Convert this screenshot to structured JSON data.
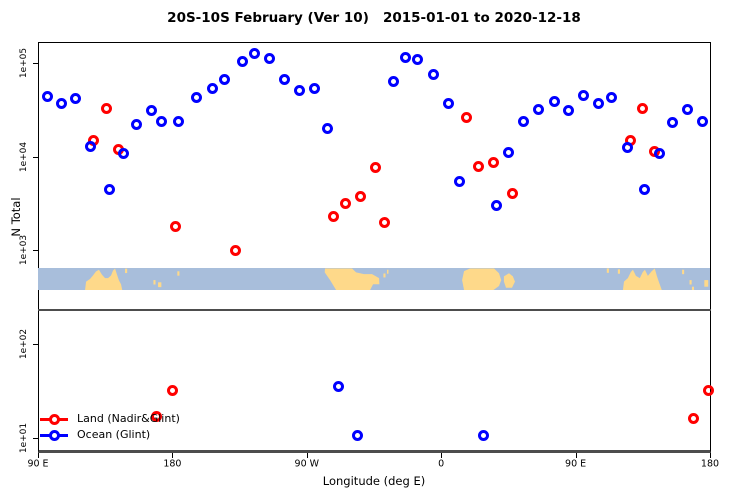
{
  "title": "20S-10S February (Ver 10)   2015-01-01 to 2020-12-18",
  "axes": {
    "x_label": "Longitude (deg E)",
    "y_label": "N Total"
  },
  "legend": [
    {
      "label": "Land (Nadir&Glint)",
      "color": "#ff0000"
    },
    {
      "label": "Ocean (Glint)",
      "color": "#0000ff"
    }
  ],
  "chart_data": {
    "type": "scatter",
    "title": "20S-10S February (Ver 10)   2015-01-01 to 2020-12-18",
    "xlabel": "Longitude (deg E)",
    "ylabel": "N Total",
    "x_axis": {
      "domain": [
        90,
        540
      ],
      "note": "longitude unrolled eastward: 90E..180..90W..0..90E..180",
      "ticks": [
        {
          "lon": 90,
          "label": "90 E"
        },
        {
          "lon": 180,
          "label": "180"
        },
        {
          "lon": 270,
          "label": "90 W"
        },
        {
          "lon": 360,
          "label": "0"
        },
        {
          "lon": 450,
          "label": "90 E"
        },
        {
          "lon": 540,
          "label": "180"
        }
      ]
    },
    "y_axis": {
      "scale": "log10",
      "top_log10": 5.224,
      "bottom_log10": 0.87,
      "ticks": [
        {
          "log10": 1,
          "label": "1e+01"
        },
        {
          "log10": 2,
          "label": "1e+02"
        },
        {
          "log10": 3,
          "label": "1e+03"
        },
        {
          "log10": 4,
          "label": "1e+04"
        },
        {
          "log10": 5,
          "label": "1e+05"
        }
      ]
    },
    "series": [
      {
        "name": "Land (Nadir&Glint)",
        "color": "#ff0000",
        "marker": "open-circle",
        "points": [
          [
            127,
            15000
          ],
          [
            136,
            33000
          ],
          [
            144,
            12000
          ],
          [
            169,
            17
          ],
          [
            180,
            32
          ],
          [
            182,
            1800
          ],
          [
            222,
            1000
          ],
          [
            288,
            2300
          ],
          [
            296,
            3200
          ],
          [
            306,
            3800
          ],
          [
            316,
            7600
          ],
          [
            322,
            2000
          ],
          [
            377,
            26000
          ],
          [
            385,
            7800
          ],
          [
            395,
            8600
          ],
          [
            408,
            4100
          ],
          [
            487,
            15000
          ],
          [
            495,
            33000
          ],
          [
            503,
            11500
          ],
          [
            529,
            16
          ],
          [
            539,
            32
          ]
        ]
      },
      {
        "name": "Ocean (Glint)",
        "color": "#0000ff",
        "marker": "open-circle",
        "points": [
          [
            96,
            44000
          ],
          [
            106,
            37000
          ],
          [
            115,
            42000
          ],
          [
            125,
            13000
          ],
          [
            138,
            4500
          ],
          [
            147,
            10700
          ],
          [
            156,
            22000
          ],
          [
            166,
            31000
          ],
          [
            173,
            24000
          ],
          [
            184,
            24000
          ],
          [
            196,
            43000
          ],
          [
            207,
            54000
          ],
          [
            215,
            66000
          ],
          [
            227,
            105000
          ],
          [
            235,
            125000
          ],
          [
            245,
            113000
          ],
          [
            255,
            66000
          ],
          [
            265,
            51000
          ],
          [
            275,
            54000
          ],
          [
            284,
            20000
          ],
          [
            291,
            35
          ],
          [
            304,
            10.5
          ],
          [
            328,
            63000
          ],
          [
            336,
            116000
          ],
          [
            344,
            110000
          ],
          [
            355,
            76000
          ],
          [
            365,
            37000
          ],
          [
            372,
            5400
          ],
          [
            388,
            10.5
          ],
          [
            397,
            3000
          ],
          [
            405,
            11000
          ],
          [
            415,
            24000
          ],
          [
            425,
            32000
          ],
          [
            436,
            39000
          ],
          [
            445,
            31000
          ],
          [
            455,
            45000
          ],
          [
            465,
            37000
          ],
          [
            474,
            43000
          ],
          [
            485,
            12700
          ],
          [
            496,
            4500
          ],
          [
            506,
            10700
          ],
          [
            515,
            23000
          ],
          [
            525,
            32000
          ],
          [
            535,
            24000
          ]
        ]
      }
    ],
    "map_strip": {
      "description": "20S-10S latitude band world map, longitudes 90E eastward to 180 (450 deg span)",
      "ocean_color": "#a8bedb",
      "land_color": "#fed98a",
      "top_log10": 2.813,
      "bottom_log10": 2.578,
      "land_polygons": [
        [
          [
            121.5,
            1
          ],
          [
            122.2,
            0.62
          ],
          [
            124.8,
            0.5
          ],
          [
            126.8,
            0.34
          ],
          [
            128.8,
            0.16
          ],
          [
            130.8,
            0.08
          ],
          [
            132.8,
            0.3
          ],
          [
            134.9,
            0.46
          ],
          [
            136.9,
            0.46
          ],
          [
            138.9,
            0.34
          ],
          [
            140.2,
            0.12
          ],
          [
            141.6,
            0.02
          ],
          [
            142.9,
            0.3
          ],
          [
            144.2,
            0.56
          ],
          [
            145.6,
            0.74
          ],
          [
            146.4,
            1
          ]
        ],
        [
          [
            282.2,
            0.02
          ],
          [
            300.3,
            0.02
          ],
          [
            303,
            0.2
          ],
          [
            308.3,
            0.28
          ],
          [
            313.7,
            0.28
          ],
          [
            318.4,
            0.46
          ],
          [
            318.6,
            0.74
          ],
          [
            314.4,
            0.74
          ],
          [
            312.4,
            1
          ],
          [
            289.6,
            1
          ],
          [
            285.6,
            0.55
          ],
          [
            282,
            0.2
          ]
        ],
        [
          [
            375.3,
            0.14
          ],
          [
            379.3,
            0.02
          ],
          [
            395.4,
            0.02
          ],
          [
            398.7,
            0.24
          ],
          [
            400.2,
            0.55
          ],
          [
            398.7,
            0.82
          ],
          [
            395,
            1
          ],
          [
            375.3,
            1
          ],
          [
            374,
            0.55
          ]
        ],
        [
          [
            402,
            0.38
          ],
          [
            405.4,
            0.24
          ],
          [
            408,
            0.38
          ],
          [
            409.4,
            0.62
          ],
          [
            407.4,
            0.9
          ],
          [
            403.4,
            0.9
          ],
          [
            402,
            0.62
          ]
        ],
        [
          [
            481.7,
            1
          ],
          [
            482.4,
            0.62
          ],
          [
            485,
            0.46
          ],
          [
            487,
            0.18
          ],
          [
            488.4,
            0.08
          ],
          [
            490.4,
            0.36
          ],
          [
            493,
            0.46
          ],
          [
            495,
            0.18
          ],
          [
            496.4,
            0.08
          ],
          [
            498.4,
            0.36
          ],
          [
            501,
            0.14
          ],
          [
            503,
            0.02
          ],
          [
            504.4,
            0.36
          ],
          [
            505.7,
            0.62
          ],
          [
            507.7,
            1
          ]
        ]
      ],
      "islands": [
        [
          149,
          0.03,
          1.4,
          0.2
        ],
        [
          168,
          0.55,
          1.4,
          0.2
        ],
        [
          171.5,
          0.65,
          2.2,
          0.22
        ],
        [
          184,
          0.15,
          1.4,
          0.2
        ],
        [
          322,
          0.25,
          1.4,
          0.18
        ],
        [
          324.2,
          0.08,
          1,
          0.18
        ],
        [
          471.6,
          0.02,
          1.4,
          0.2
        ],
        [
          479,
          0.06,
          1.4,
          0.2
        ],
        [
          522,
          0.08,
          1.4,
          0.2
        ],
        [
          527,
          0.55,
          1.4,
          0.2
        ],
        [
          528.6,
          0.85,
          1.4,
          0.15
        ],
        [
          537.5,
          0.55,
          2.6,
          0.3
        ]
      ]
    },
    "separator_line_log10": 2.374
  }
}
